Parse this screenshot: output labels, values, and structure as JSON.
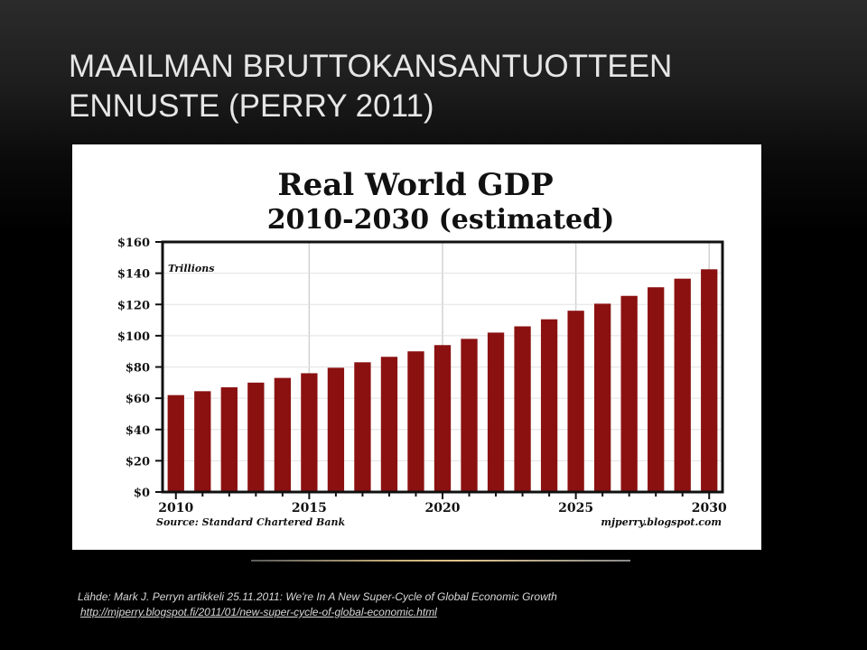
{
  "slide": {
    "title_line1": "MAAILMAN BRUTTOKANSANTUOTTEEN",
    "title_line2": "ENNUSTE (PERRY 2011)",
    "caption": "Lähde: Mark J. Perryn artikkeli 25.11.2011: We're In A New Super-Cycle of Global Economic Growth",
    "link": "http://mjperry.blogspot.fi/2011/01/new-super-cycle-of-global-economic.html"
  },
  "chart_data": {
    "type": "bar",
    "title": "Real World GDP",
    "subtitle": "2010-2030 (estimated)",
    "unit_label": "Trillions",
    "source": "Source: Standard Chartered Bank",
    "watermark": "mjperry.blogspot.com",
    "x": [
      2010,
      2011,
      2012,
      2013,
      2014,
      2015,
      2016,
      2017,
      2018,
      2019,
      2020,
      2021,
      2022,
      2023,
      2024,
      2025,
      2026,
      2027,
      2028,
      2029,
      2030
    ],
    "values": [
      62,
      64.5,
      67,
      70,
      73,
      76,
      79.5,
      83,
      86.5,
      90,
      94,
      98,
      102,
      106,
      110.5,
      116,
      120.5,
      125.5,
      131,
      136.5,
      142.5
    ],
    "x_tick_labels": [
      "2010",
      "2015",
      "2020",
      "2025",
      "2030"
    ],
    "y_tick_labels": [
      "$0",
      "$20",
      "$40",
      "$60",
      "$80",
      "$100",
      "$120",
      "$140",
      "$160"
    ],
    "ylim": [
      0,
      160
    ],
    "bar_color": "#8b1111",
    "grid": true,
    "legend": "none"
  }
}
